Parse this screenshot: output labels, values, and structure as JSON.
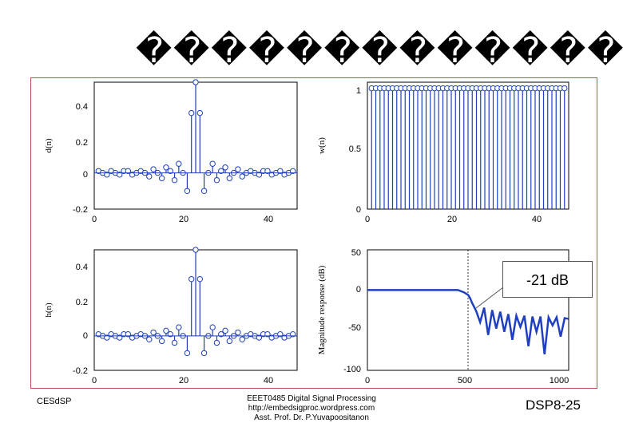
{
  "slide": {
    "title": "�����������������",
    "footer_left": "CESdSP",
    "footer_center": [
      "EEET0485 Digital Signal Processing",
      "http://embedsigproc.wordpress.com",
      "Asst. Prof. Dr. P.Yuvapoositanon"
    ],
    "footer_right": "DSP8-25",
    "annotation": "-21 dB"
  },
  "colors": {
    "stem": "#1f3fbf",
    "frame": "#c0504d"
  },
  "chart_data": [
    {
      "type": "scatter",
      "ylabel": "d(n)",
      "xticks": [
        "0",
        "20",
        "40"
      ],
      "yticks": [
        "0.4",
        "0.2",
        "0",
        "-0.2"
      ],
      "xlim": [
        0,
        48
      ],
      "ylim": [
        -0.2,
        0.5
      ],
      "x": [
        1,
        2,
        3,
        4,
        5,
        6,
        7,
        8,
        9,
        10,
        11,
        12,
        13,
        14,
        15,
        16,
        17,
        18,
        19,
        20,
        21,
        22,
        23,
        24,
        25,
        26,
        27,
        28,
        29,
        30,
        31,
        32,
        33,
        34,
        35,
        36,
        37,
        38,
        39,
        40,
        41,
        42,
        43,
        44,
        45,
        46,
        47
      ],
      "values": [
        0.01,
        0.0,
        -0.01,
        0.01,
        0.0,
        -0.01,
        0.01,
        0.01,
        -0.01,
        0.0,
        0.01,
        0.0,
        -0.02,
        0.02,
        0.0,
        -0.03,
        0.03,
        0.01,
        -0.04,
        0.05,
        0.0,
        -0.1,
        0.33,
        0.5,
        0.33,
        -0.1,
        0.0,
        0.05,
        -0.04,
        0.01,
        0.03,
        -0.03,
        0.0,
        0.02,
        -0.02,
        0.0,
        0.01,
        0.0,
        -0.01,
        0.01,
        0.01,
        -0.01,
        0.0,
        0.01,
        -0.01,
        0.0,
        0.01
      ]
    },
    {
      "type": "scatter",
      "ylabel": "w(n)",
      "xticks": [
        "0",
        "20",
        "40"
      ],
      "yticks": [
        "1",
        "0.5",
        "0"
      ],
      "xlim": [
        0,
        48
      ],
      "ylim": [
        0,
        1.05
      ],
      "x": [
        1,
        2,
        3,
        4,
        5,
        6,
        7,
        8,
        9,
        10,
        11,
        12,
        13,
        14,
        15,
        16,
        17,
        18,
        19,
        20,
        21,
        22,
        23,
        24,
        25,
        26,
        27,
        28,
        29,
        30,
        31,
        32,
        33,
        34,
        35,
        36,
        37,
        38,
        39,
        40,
        41,
        42,
        43,
        44,
        45,
        46,
        47
      ],
      "values": [
        1,
        1,
        1,
        1,
        1,
        1,
        1,
        1,
        1,
        1,
        1,
        1,
        1,
        1,
        1,
        1,
        1,
        1,
        1,
        1,
        1,
        1,
        1,
        1,
        1,
        1,
        1,
        1,
        1,
        1,
        1,
        1,
        1,
        1,
        1,
        1,
        1,
        1,
        1,
        1,
        1,
        1,
        1,
        1,
        1,
        1,
        1
      ]
    },
    {
      "type": "scatter",
      "ylabel": "h(n)",
      "xticks": [
        "0",
        "20",
        "40"
      ],
      "yticks": [
        "0.4",
        "0.2",
        "0",
        "-0.2"
      ],
      "xlim": [
        0,
        48
      ],
      "ylim": [
        -0.2,
        0.5
      ],
      "x": [
        1,
        2,
        3,
        4,
        5,
        6,
        7,
        8,
        9,
        10,
        11,
        12,
        13,
        14,
        15,
        16,
        17,
        18,
        19,
        20,
        21,
        22,
        23,
        24,
        25,
        26,
        27,
        28,
        29,
        30,
        31,
        32,
        33,
        34,
        35,
        36,
        37,
        38,
        39,
        40,
        41,
        42,
        43,
        44,
        45,
        46,
        47
      ],
      "values": [
        0.01,
        0.0,
        -0.01,
        0.01,
        0.0,
        -0.01,
        0.01,
        0.01,
        -0.01,
        0.0,
        0.01,
        0.0,
        -0.02,
        0.02,
        0.0,
        -0.03,
        0.03,
        0.01,
        -0.04,
        0.05,
        0.0,
        -0.1,
        0.33,
        0.5,
        0.33,
        -0.1,
        0.0,
        0.05,
        -0.04,
        0.01,
        0.03,
        -0.03,
        0.0,
        0.02,
        -0.02,
        0.0,
        0.01,
        0.0,
        -0.01,
        0.01,
        0.01,
        -0.01,
        0.0,
        0.01,
        -0.01,
        0.0,
        0.01
      ]
    },
    {
      "type": "line",
      "ylabel": "Magnitude response (dB)",
      "xticks": [
        "0",
        "500",
        "1000"
      ],
      "yticks": [
        "50",
        "0",
        "-50",
        "-100"
      ],
      "xlim": [
        0,
        1000
      ],
      "ylim": [
        -100,
        50
      ],
      "passband_end": 500,
      "x": [
        0,
        50,
        100,
        150,
        200,
        250,
        300,
        350,
        400,
        450,
        480,
        500,
        510,
        520,
        530,
        540,
        560,
        580,
        600,
        620,
        640,
        660,
        680,
        700,
        720,
        740,
        760,
        780,
        800,
        820,
        840,
        860,
        880,
        900,
        920,
        940,
        960,
        980,
        1000
      ],
      "values": [
        0,
        0,
        0,
        0,
        0,
        0,
        0,
        0,
        0,
        0,
        -3,
        -6,
        -10,
        -16,
        -21,
        -26,
        -40,
        -22,
        -56,
        -25,
        -48,
        -27,
        -52,
        -30,
        -62,
        -32,
        -46,
        -32,
        -70,
        -33,
        -52,
        -33,
        -80,
        -34,
        -44,
        -34,
        -58,
        -35,
        -36
      ]
    }
  ]
}
